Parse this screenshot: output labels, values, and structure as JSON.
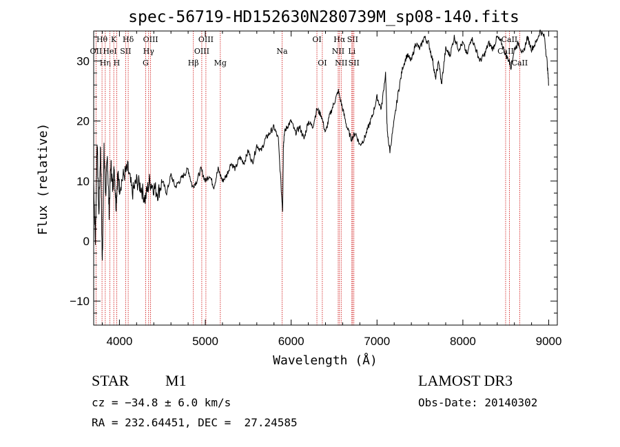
{
  "chart_data": {
    "type": "line",
    "title": "spec-56719-HD152630N280739M_sp08-140.fits",
    "xlabel": "Wavelength (Å)",
    "ylabel": "Flux (relative)",
    "xlim": [
      3700,
      9100
    ],
    "ylim": [
      -14,
      35
    ],
    "xticks": [
      4000,
      5000,
      6000,
      7000,
      8000,
      9000
    ],
    "xtick_labels": [
      "4000",
      "5000",
      "6000",
      "7000",
      "8000",
      "9000"
    ],
    "yticks": [
      -10,
      0,
      10,
      20,
      30
    ],
    "ytick_labels": [
      "−10",
      "0",
      "10",
      "20",
      "30"
    ],
    "series": [
      {
        "name": "flux",
        "x": [
          3700,
          3720,
          3740,
          3760,
          3780,
          3800,
          3820,
          3840,
          3860,
          3880,
          3900,
          3920,
          3940,
          3960,
          3980,
          4000,
          4050,
          4100,
          4150,
          4200,
          4250,
          4300,
          4350,
          4400,
          4450,
          4500,
          4550,
          4600,
          4650,
          4700,
          4750,
          4800,
          4850,
          4900,
          4950,
          5000,
          5050,
          5100,
          5150,
          5200,
          5250,
          5300,
          5350,
          5400,
          5450,
          5500,
          5550,
          5600,
          5650,
          5700,
          5750,
          5800,
          5850,
          5900,
          5910,
          5920,
          5950,
          6000,
          6050,
          6100,
          6150,
          6200,
          6250,
          6300,
          6350,
          6400,
          6450,
          6500,
          6550,
          6600,
          6650,
          6700,
          6750,
          6800,
          6850,
          6900,
          6950,
          7000,
          7050,
          7100,
          7120,
          7150,
          7200,
          7250,
          7300,
          7350,
          7400,
          7450,
          7500,
          7550,
          7600,
          7650,
          7680,
          7720,
          7750,
          7800,
          7850,
          7900,
          7950,
          8000,
          8050,
          8100,
          8150,
          8200,
          8250,
          8300,
          8350,
          8400,
          8450,
          8500,
          8540,
          8560,
          8600,
          8650,
          8700,
          8750,
          8800,
          8850,
          8900,
          8950,
          8980,
          9000
        ],
        "y": [
          10,
          0,
          17,
          4,
          16,
          -4,
          15,
          8,
          14,
          5,
          13,
          9,
          12,
          6,
          11,
          9,
          11,
          12,
          8,
          10,
          9,
          7,
          10,
          9,
          8,
          10,
          8,
          11,
          9,
          10,
          11,
          12,
          9,
          10,
          12,
          10,
          11,
          9,
          12,
          10,
          11,
          13,
          12,
          14,
          13,
          15,
          13,
          16,
          15,
          17,
          18,
          19,
          17,
          5,
          16,
          18,
          19,
          20,
          18,
          19,
          17,
          20,
          19,
          22,
          21,
          18,
          21,
          23,
          25,
          22,
          19,
          17,
          18,
          16,
          17,
          19,
          21,
          24,
          22,
          28,
          18,
          15,
          20,
          25,
          29,
          31,
          30,
          33,
          32,
          34,
          33,
          30,
          27,
          30,
          26,
          32,
          31,
          34,
          32,
          33,
          31,
          34,
          32,
          30,
          31,
          33,
          32,
          34,
          33,
          31,
          30,
          29,
          32,
          33,
          31,
          34,
          32,
          33,
          35,
          34,
          30,
          26
        ]
      }
    ],
    "line_markers": [
      {
        "label": "Hθ",
        "x": 3797,
        "row": 0
      },
      {
        "label": "OII",
        "x": 3727,
        "row": 1
      },
      {
        "label": "Hη",
        "x": 3835,
        "row": 2
      },
      {
        "label": "K",
        "x": 3934,
        "row": 0
      },
      {
        "label": "HeI",
        "x": 3889,
        "row": 1
      },
      {
        "label": "H",
        "x": 3968,
        "row": 2
      },
      {
        "label": "SII",
        "x": 4072,
        "row": 1
      },
      {
        "label": "Hδ",
        "x": 4102,
        "row": 0
      },
      {
        "label": "OIII",
        "x": 4363,
        "row": 0
      },
      {
        "label": "Hγ",
        "x": 4340,
        "row": 1
      },
      {
        "label": "G",
        "x": 4305,
        "row": 2
      },
      {
        "label": "Hβ",
        "x": 4861,
        "row": 2
      },
      {
        "label": "OIII",
        "x": 5007,
        "row": 0
      },
      {
        "label": "OIII",
        "x": 4959,
        "row": 1
      },
      {
        "label": "Mg",
        "x": 5175,
        "row": 2
      },
      {
        "label": "Na",
        "x": 5894,
        "row": 1
      },
      {
        "label": "OI",
        "x": 6300,
        "row": 0
      },
      {
        "label": "OI",
        "x": 6363,
        "row": 2
      },
      {
        "label": "Hα",
        "x": 6563,
        "row": 0
      },
      {
        "label": "SII",
        "x": 6716,
        "row": 0
      },
      {
        "label": "NII",
        "x": 6548,
        "row": 1
      },
      {
        "label": "Li",
        "x": 6707,
        "row": 1
      },
      {
        "label": "NII",
        "x": 6583,
        "row": 2
      },
      {
        "label": "SII",
        "x": 6731,
        "row": 2
      },
      {
        "label": "CaII",
        "x": 8542,
        "row": 0
      },
      {
        "label": "CaII",
        "x": 8498,
        "row": 1
      },
      {
        "label": "CaII",
        "x": 8662,
        "row": 2
      }
    ],
    "grid": false,
    "legend": "none"
  },
  "info": {
    "class": "STAR",
    "subclass": "M1",
    "survey": "LAMOST DR3",
    "cz": "cz = −34.8 ± 6.0 km/s",
    "obs_date": "Obs-Date: 20140302",
    "coords": "RA = 232.64451, DEC =  27.24585"
  },
  "colors": {
    "spectrum": "#000000",
    "marker_line": "#cc0000",
    "axes": "#000000"
  }
}
